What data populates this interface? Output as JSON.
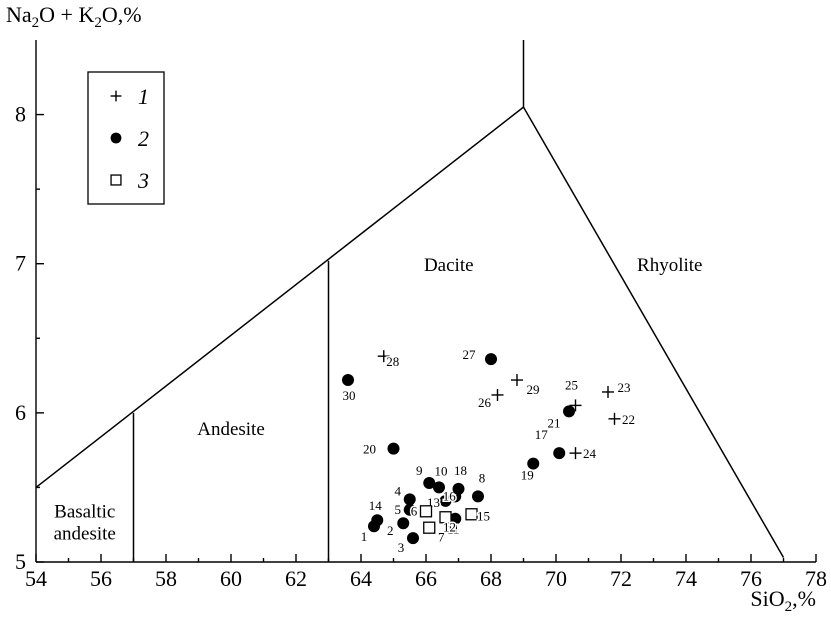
{
  "chart_data": {
    "type": "scatter",
    "title": "",
    "xlabel": "SiO",
    "xlabel_sub": "2",
    "xlabel_suffix": ",%",
    "ylabel_parts": [
      "Na",
      "2",
      "O + K",
      "2",
      "O,%"
    ],
    "xlim": [
      54,
      78
    ],
    "ylim": [
      5,
      8.5
    ],
    "x_ticks": [
      54,
      56,
      58,
      60,
      62,
      64,
      66,
      68,
      70,
      72,
      74,
      76,
      78
    ],
    "y_ticks": [
      5,
      6,
      7,
      8
    ],
    "grid": false,
    "legend_position": "top-left",
    "legend": [
      {
        "marker": "plus",
        "label": "1"
      },
      {
        "marker": "filled-circle",
        "label": "2"
      },
      {
        "marker": "open-square",
        "label": "3"
      }
    ],
    "fields": [
      {
        "name": "Basaltic andesite",
        "lines": [
          "Basaltic",
          "andesite"
        ],
        "x": 55.5,
        "y": 5.3
      },
      {
        "name": "Andesite",
        "lines": [
          "Andesite"
        ],
        "x": 60.0,
        "y": 5.85
      },
      {
        "name": "Dacite",
        "lines": [
          "Dacite"
        ],
        "x": 66.7,
        "y": 6.95
      },
      {
        "name": "Rhyolite",
        "lines": [
          "Rhyolite"
        ],
        "x": 73.5,
        "y": 6.95
      }
    ],
    "boundaries": [
      [
        [
          54,
          5.5
        ],
        [
          69.0,
          8.05
        ]
      ],
      [
        [
          69.0,
          8.05
        ],
        [
          69.0,
          8.5
        ]
      ],
      [
        [
          69.0,
          8.05
        ],
        [
          77.0,
          5.03
        ]
      ],
      [
        [
          57.0,
          5.0
        ],
        [
          57.0,
          6.0
        ]
      ],
      [
        [
          63.0,
          5.0
        ],
        [
          63.0,
          7.02
        ]
      ]
    ],
    "series": [
      {
        "name": "1",
        "marker": "plus",
        "points": [
          {
            "id": "22",
            "x": 71.8,
            "y": 5.96
          },
          {
            "id": "23",
            "x": 71.6,
            "y": 6.14
          },
          {
            "id": "24",
            "x": 70.6,
            "y": 5.73
          },
          {
            "id": "25",
            "x": 70.6,
            "y": 6.05
          },
          {
            "id": "26",
            "x": 68.2,
            "y": 6.12
          },
          {
            "id": "28",
            "x": 64.7,
            "y": 6.38
          },
          {
            "id": "29",
            "x": 68.8,
            "y": 6.22
          }
        ]
      },
      {
        "name": "2",
        "marker": "filled-circle",
        "points": [
          {
            "id": "1",
            "x": 64.4,
            "y": 5.24
          },
          {
            "id": "2",
            "x": 65.3,
            "y": 5.26
          },
          {
            "id": "3",
            "x": 65.6,
            "y": 5.16
          },
          {
            "id": "4",
            "x": 65.5,
            "y": 5.42
          },
          {
            "id": "5",
            "x": 65.5,
            "y": 5.35
          },
          {
            "id": "8",
            "x": 67.6,
            "y": 5.44
          },
          {
            "id": "9",
            "x": 66.1,
            "y": 5.53
          },
          {
            "id": "10",
            "x": 66.4,
            "y": 5.5
          },
          {
            "id": "11",
            "x": 66.9,
            "y": 5.29
          },
          {
            "id": "13",
            "x": 66.6,
            "y": 5.41
          },
          {
            "id": "14",
            "x": 64.5,
            "y": 5.28
          },
          {
            "id": "16",
            "x": 66.9,
            "y": 5.44
          },
          {
            "id": "17",
            "x": 70.1,
            "y": 5.73
          },
          {
            "id": "18",
            "x": 67.0,
            "y": 5.49
          },
          {
            "id": "19",
            "x": 69.3,
            "y": 5.66
          },
          {
            "id": "20",
            "x": 65.0,
            "y": 5.76
          },
          {
            "id": "21",
            "x": 70.4,
            "y": 6.01
          },
          {
            "id": "27",
            "x": 68.0,
            "y": 6.36
          },
          {
            "id": "30",
            "x": 63.6,
            "y": 6.22
          }
        ]
      },
      {
        "name": "3",
        "marker": "open-square",
        "points": [
          {
            "id": "6",
            "x": 66.0,
            "y": 5.34
          },
          {
            "id": "7",
            "x": 66.1,
            "y": 5.23
          },
          {
            "id": "12",
            "x": 66.6,
            "y": 5.3
          },
          {
            "id": "15",
            "x": 67.4,
            "y": 5.32
          }
        ]
      }
    ]
  }
}
